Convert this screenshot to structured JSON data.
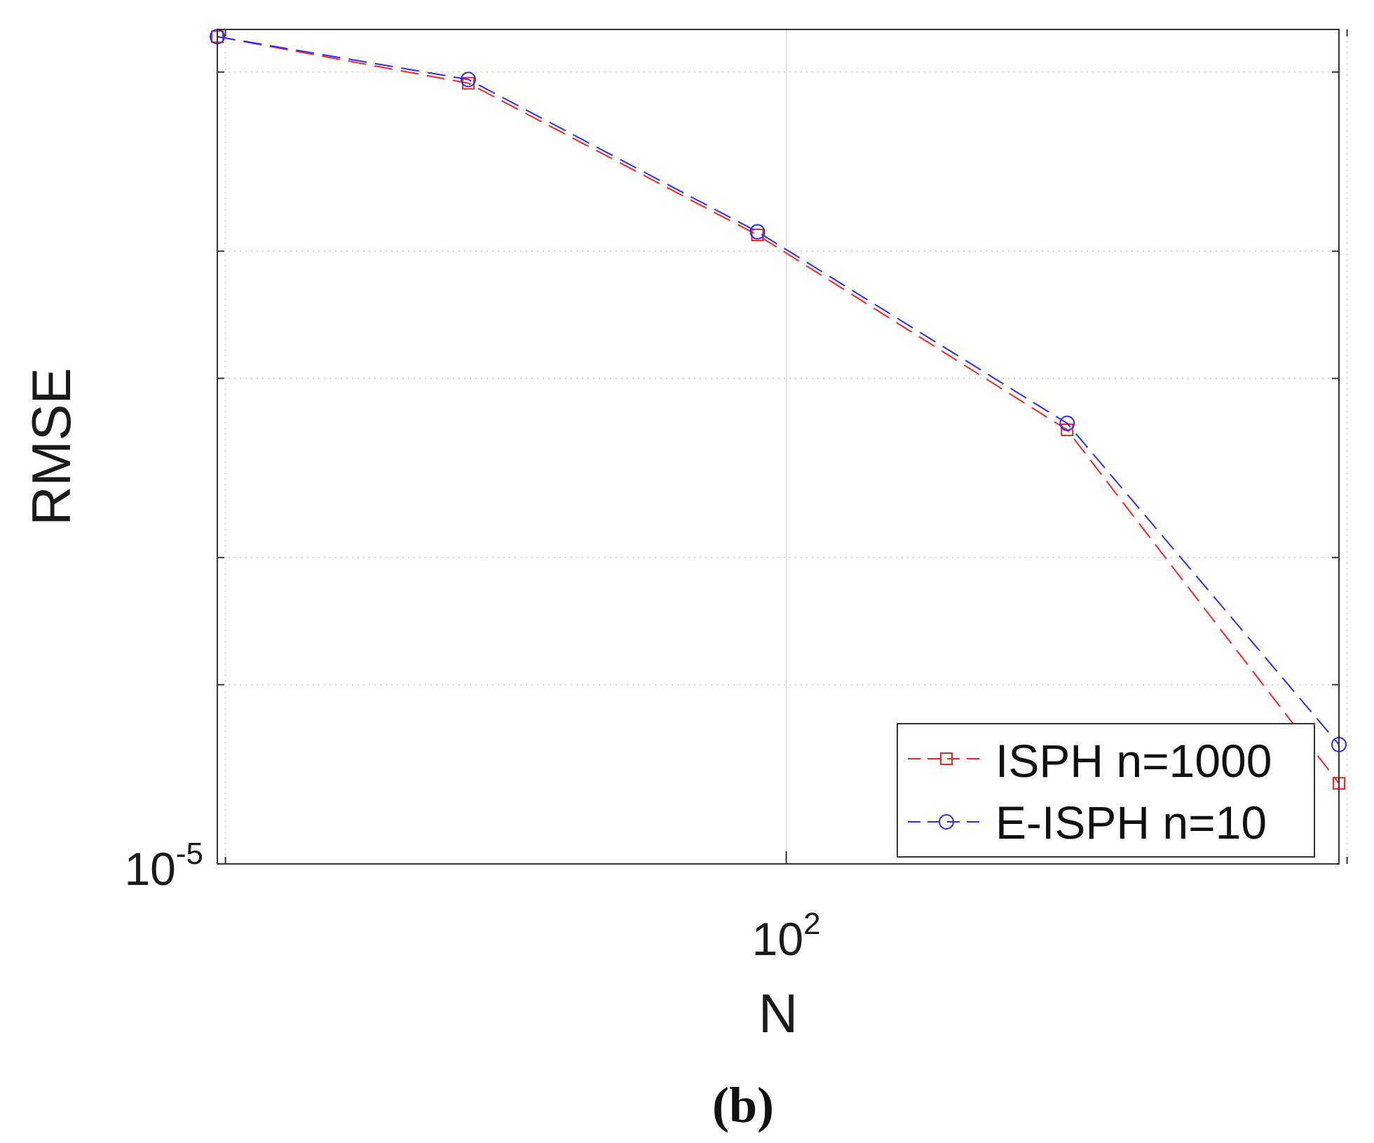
{
  "chart_data": {
    "type": "line",
    "xlabel": "N",
    "ylabel": "RMSE",
    "x_scale": "log",
    "y_scale": "log",
    "xlim": [
      49.5,
      198
    ],
    "ylim_log10": [
      -5,
      -4.18
    ],
    "x_ticks": [
      {
        "value": 100,
        "base": "10",
        "exp": "2"
      }
    ],
    "y_ticks": [
      {
        "value": 1e-05,
        "base": "10",
        "exp": "-5"
      }
    ],
    "minor_x_gridlines": [
      50,
      200
    ],
    "minor_y_gridlines": [
      1.5e-05,
      2e-05,
      3e-05,
      4e-05,
      6e-05
    ],
    "grid": true,
    "legend_position": "bottom-right",
    "series": [
      {
        "name": "ISPH n=1000",
        "color": "#ff2020",
        "marker": "square",
        "line_style": "dashed",
        "x": [
          49.5,
          67.5,
          96.5,
          141.5,
          198
        ],
        "y": [
          6.5e-05,
          5.85e-05,
          4.15e-05,
          2.67e-05,
          1.2e-05
        ]
      },
      {
        "name": "E-ISPH n=10",
        "color": "#2b2bff",
        "marker": "circle",
        "line_style": "dashed",
        "x": [
          49.5,
          67.5,
          96.5,
          141.5,
          198
        ],
        "y": [
          6.5e-05,
          5.9e-05,
          4.18e-05,
          2.71e-05,
          1.31e-05
        ]
      }
    ]
  },
  "caption": {
    "open": "(",
    "label": "b",
    "close": ")"
  }
}
